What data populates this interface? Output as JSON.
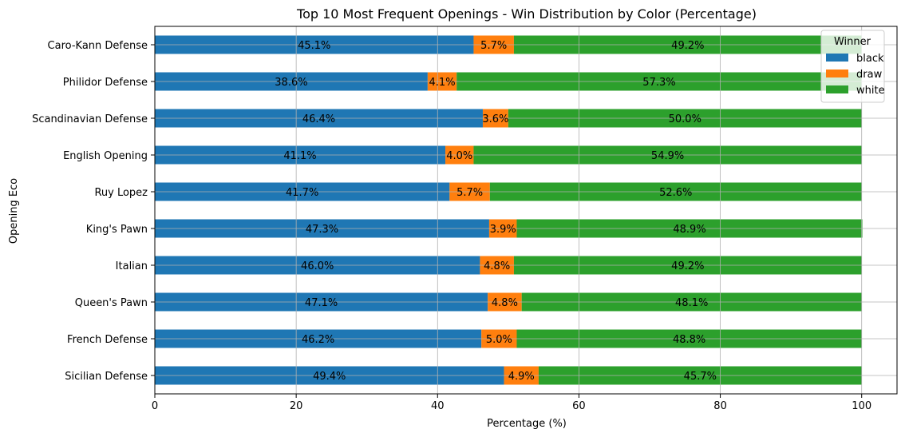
{
  "chart_data": {
    "type": "bar",
    "orientation": "horizontal",
    "stacked": true,
    "title": "Top 10 Most Frequent Openings - Win Distribution by Color (Percentage)",
    "xlabel": "Percentage (%)",
    "ylabel": "Opening Eco",
    "xlim": [
      0,
      105
    ],
    "xticks": [
      0,
      20,
      40,
      60,
      80,
      100
    ],
    "grid": true,
    "legend": {
      "title": "Winner",
      "placement": "top-right"
    },
    "categories": [
      "Caro-Kann Defense",
      "Philidor Defense",
      "Scandinavian Defense",
      "English Opening",
      "Ruy Lopez",
      "King's Pawn",
      "Italian",
      "Queen's Pawn",
      "French Defense",
      "Sicilian Defense"
    ],
    "series": [
      {
        "name": "black",
        "color": "#1f77b4",
        "values": [
          45.1,
          38.6,
          46.4,
          41.1,
          41.7,
          47.3,
          46.0,
          47.1,
          46.2,
          49.4
        ]
      },
      {
        "name": "draw",
        "color": "#ff7f0e",
        "values": [
          5.7,
          4.1,
          3.6,
          4.0,
          5.7,
          3.9,
          4.8,
          4.8,
          5.0,
          4.9
        ]
      },
      {
        "name": "white",
        "color": "#2ca02c",
        "values": [
          49.2,
          57.3,
          50.0,
          54.9,
          52.6,
          48.9,
          49.2,
          48.1,
          48.8,
          45.7
        ]
      }
    ]
  }
}
